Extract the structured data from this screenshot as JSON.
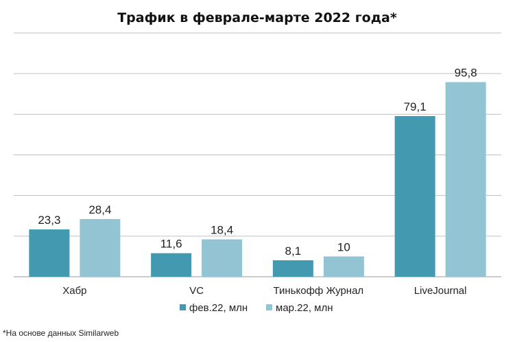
{
  "chart_data": {
    "type": "bar",
    "title": "Трафик в феврале-марте 2022 года*",
    "categories": [
      "Хабр",
      "VC",
      "Тинькофф Журнал",
      "LiveJournal"
    ],
    "series": [
      {
        "name": "фев.22, млн",
        "color": "#4299b0",
        "values": [
          23.3,
          11.6,
          8.1,
          79.1
        ],
        "labels": [
          "23,3",
          "11,6",
          "8,1",
          "79,1"
        ]
      },
      {
        "name": "мар.22, млн",
        "color": "#93c4d4",
        "values": [
          28.4,
          18.4,
          10,
          95.8
        ],
        "labels": [
          "28,4",
          "18,4",
          "10",
          "95,8"
        ]
      }
    ],
    "ylim": [
      0,
      120
    ],
    "grid": true,
    "legend_position": "bottom",
    "xlabel": "",
    "ylabel": ""
  },
  "footnote": "*На основе данных Similarweb"
}
